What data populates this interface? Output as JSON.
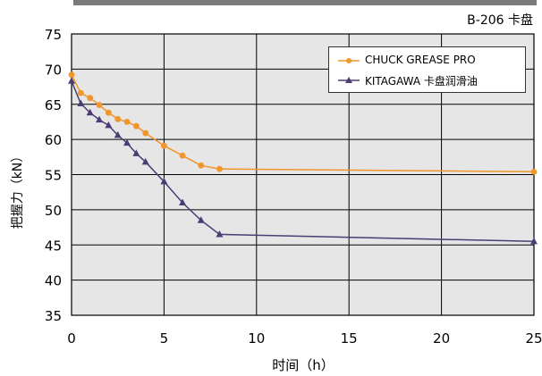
{
  "chart_data": {
    "type": "line",
    "title": "B-206 卡盘",
    "xlabel": "时间（h）",
    "ylabel": "把握力（kN）",
    "xlim": [
      0,
      25
    ],
    "ylim": [
      35,
      75
    ],
    "xticks": [
      "0",
      "5",
      "10",
      "15",
      "20",
      "25"
    ],
    "yticks": [
      "35",
      "40",
      "45",
      "50",
      "55",
      "60",
      "65",
      "70",
      "75"
    ],
    "grid": true,
    "legend_position": "top-right",
    "series": [
      {
        "name": "CHUCK GREASE PRO",
        "color": "#f0962a",
        "marker": "circle",
        "x": [
          0,
          0.5,
          1,
          1.5,
          2,
          2.5,
          3,
          3.5,
          4,
          5,
          6,
          7,
          8,
          25
        ],
        "y": [
          69.2,
          66.6,
          65.9,
          64.9,
          63.8,
          62.9,
          62.5,
          61.9,
          60.9,
          59.1,
          57.7,
          56.3,
          55.8,
          55.4
        ]
      },
      {
        "name": "KITAGAWA 卡盘润滑油",
        "color": "#4b3d73",
        "marker": "triangle",
        "x": [
          0,
          0.5,
          1,
          1.5,
          2,
          2.5,
          3,
          3.5,
          4,
          5,
          6,
          7,
          8,
          25
        ],
        "y": [
          68.3,
          65.1,
          63.8,
          62.8,
          62.0,
          60.6,
          59.5,
          58.0,
          56.8,
          54.0,
          51.0,
          48.5,
          46.5,
          45.5
        ]
      }
    ]
  }
}
